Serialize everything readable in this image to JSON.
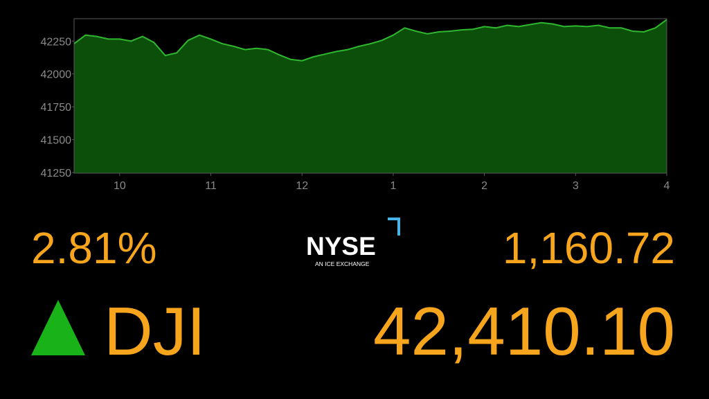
{
  "chart_data": {
    "type": "area",
    "x": [
      9.5,
      9.625,
      9.75,
      9.875,
      10,
      10.125,
      10.25,
      10.375,
      10.5,
      10.625,
      10.75,
      10.875,
      11,
      11.125,
      11.25,
      11.375,
      11.5,
      11.625,
      11.75,
      11.875,
      12,
      12.125,
      12.25,
      12.375,
      12.5,
      12.625,
      12.75,
      12.875,
      13,
      13.125,
      13.25,
      13.375,
      13.5,
      13.625,
      13.75,
      13.875,
      14,
      14.125,
      14.25,
      14.375,
      14.5,
      14.625,
      14.75,
      14.875,
      15,
      15.125,
      15.25,
      15.375,
      15.5,
      15.625,
      15.75,
      15.875,
      16
    ],
    "series": [
      {
        "color": "#2fb82f",
        "fill": "#0b4f0b",
        "values": [
          42230,
          42295,
          42285,
          42265,
          42265,
          42250,
          42285,
          42240,
          42140,
          42160,
          42255,
          42295,
          42265,
          42230,
          42210,
          42185,
          42195,
          42185,
          42145,
          42110,
          42100,
          42130,
          42150,
          42170,
          42185,
          42210,
          42230,
          42255,
          42295,
          42350,
          42325,
          42305,
          42320,
          42325,
          42335,
          42340,
          42360,
          42350,
          42370,
          42360,
          42375,
          42390,
          42380,
          42360,
          42365,
          42360,
          42370,
          42350,
          42350,
          42325,
          42320,
          42350,
          42413
        ]
      }
    ],
    "xlim": [
      9.5,
      16
    ],
    "xticks": [
      10,
      11,
      12,
      {
        "value": 13,
        "label": "1"
      },
      {
        "value": 14,
        "label": "2"
      },
      {
        "value": 15,
        "label": "3"
      },
      {
        "value": 16,
        "label": "4"
      }
    ],
    "ylim": [
      41245,
      42420
    ],
    "yticks": [
      41250,
      41500,
      41750,
      42000,
      42250
    ]
  },
  "ticker": {
    "change_percent": "2.81%",
    "change_points": "1,160.72",
    "symbol": "DJI",
    "price": "42,410.10",
    "exchange": {
      "name": "NYSE",
      "tagline": "AN ICE EXCHANGE"
    }
  }
}
